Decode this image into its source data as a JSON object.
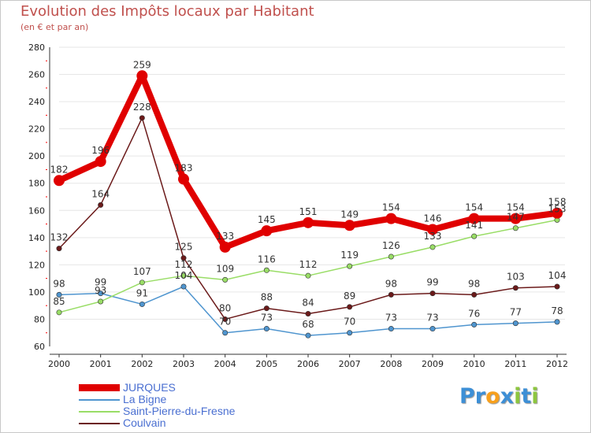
{
  "title": "Evolution des Impôts locaux par Habitant",
  "subtitle": "(en € et par an)",
  "logo": {
    "text": "Proxiti",
    "letters": [
      "P",
      "r",
      "o",
      "x",
      "i",
      "t",
      "i"
    ]
  },
  "colors": {
    "jurques": "#e00000",
    "labigne": "#4f95cf",
    "saintpierre": "#99dd66",
    "coulvain": "#6b1a1a",
    "axis": "#333333",
    "grid": "#e6e6e6",
    "tick_red": "#ff0000",
    "logo": [
      "#3d8fd6",
      "#3d8fd6",
      "#f7a01d",
      "#3d8fd6",
      "#8dc63f",
      "#3d8fd6",
      "#8dc63f"
    ]
  },
  "chart_data": {
    "type": "line",
    "title": "Evolution des Impôts locaux par Habitant",
    "subtitle": "(en € et par an)",
    "xlabel": "",
    "ylabel": "",
    "x": [
      "2000",
      "2001",
      "2002",
      "2003",
      "2004",
      "2005",
      "2006",
      "2007",
      "2008",
      "2009",
      "2010",
      "2011",
      "2012"
    ],
    "ylim": [
      60,
      280
    ],
    "yticks": [
      60,
      80,
      100,
      120,
      140,
      160,
      180,
      200,
      220,
      240,
      260,
      280
    ],
    "grid": true,
    "legend_position": "bottom-left",
    "series": [
      {
        "name": "JURQUES",
        "key": "jurques",
        "values": [
          182,
          196,
          259,
          183,
          133,
          145,
          151,
          149,
          154,
          146,
          154,
          154,
          158
        ]
      },
      {
        "name": "La Bigne",
        "key": "labigne",
        "values": [
          98,
          99,
          91,
          104,
          70,
          73,
          68,
          70,
          73,
          73,
          76,
          77,
          78
        ]
      },
      {
        "name": "Saint-Pierre-du-Fresne",
        "key": "saintpierre",
        "values": [
          85,
          93,
          107,
          112,
          109,
          116,
          112,
          119,
          126,
          133,
          141,
          147,
          153
        ]
      },
      {
        "name": "Coulvain",
        "key": "coulvain",
        "values": [
          132,
          164,
          228,
          125,
          80,
          88,
          84,
          89,
          98,
          99,
          98,
          103,
          104
        ]
      }
    ]
  }
}
